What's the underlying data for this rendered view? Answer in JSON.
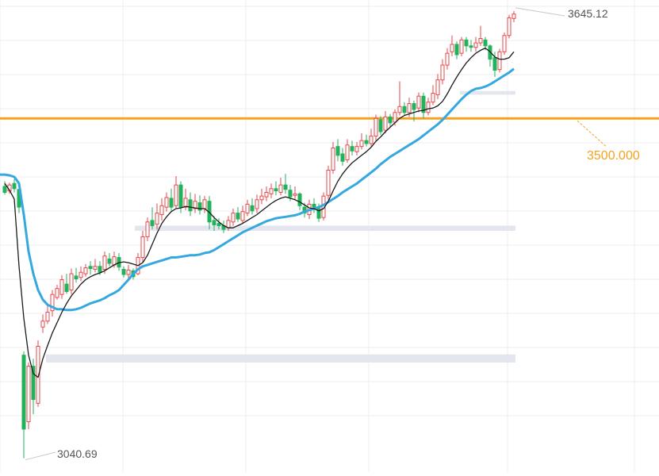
{
  "chart_data": {
    "type": "candlestick",
    "title": "",
    "xlabel": "",
    "ylabel": "",
    "ylim": [
      3022,
      3660
    ],
    "grid": true,
    "colors": {
      "up": "#e8474b",
      "down": "#21b35c",
      "ma_fast": "#1a1a1a",
      "ma_slow": "#35a8df",
      "level_line": "#f5a220",
      "zone": "#e3e6ee",
      "grid": "#eeeeee",
      "label_text": "#555555"
    },
    "labels": {
      "high_label": "3645.12",
      "low_label": "3040.69",
      "level_label": "3500.000"
    },
    "high_value": 3645.12,
    "low_value": 3040.69,
    "horizontal_line": {
      "value": 3500.0,
      "label": "3500.000"
    },
    "zones": [
      {
        "from": 3532,
        "to": 3537
      },
      {
        "from": 3348,
        "to": 3355
      },
      {
        "from": 3170,
        "to": 3181
      }
    ],
    "candles": [
      [
        3408,
        3400,
        3415,
        3397
      ],
      [
        3402,
        3410,
        3413,
        3398
      ],
      [
        3412,
        3405,
        3418,
        3400
      ],
      [
        3404,
        3380,
        3407,
        3372
      ],
      [
        3180,
        3080,
        3185,
        3040.69
      ],
      [
        3090,
        3165,
        3170,
        3080
      ],
      [
        3165,
        3120,
        3175,
        3100
      ],
      [
        3115,
        3192,
        3200,
        3110
      ],
      [
        3218,
        3226,
        3235,
        3210
      ],
      [
        3226,
        3238,
        3248,
        3222
      ],
      [
        3240,
        3262,
        3268,
        3232
      ],
      [
        3258,
        3270,
        3275,
        3255
      ],
      [
        3262,
        3282,
        3288,
        3256
      ],
      [
        3276,
        3266,
        3290,
        3263
      ],
      [
        3268,
        3290,
        3297,
        3262
      ],
      [
        3287,
        3283,
        3298,
        3278
      ],
      [
        3285,
        3292,
        3300,
        3280
      ],
      [
        3290,
        3298,
        3303,
        3286
      ],
      [
        3300,
        3297,
        3307,
        3289
      ],
      [
        3296,
        3300,
        3310,
        3292
      ],
      [
        3300,
        3292,
        3307,
        3288
      ],
      [
        3296,
        3314,
        3320,
        3290
      ],
      [
        3310,
        3304,
        3318,
        3300
      ],
      [
        3302,
        3313,
        3320,
        3298
      ],
      [
        3312,
        3299,
        3318,
        3294
      ],
      [
        3296,
        3289,
        3300,
        3285
      ],
      [
        3289,
        3295,
        3302,
        3283
      ],
      [
        3294,
        3286,
        3297,
        3282
      ],
      [
        3290,
        3312,
        3318,
        3288
      ],
      [
        3312,
        3340,
        3348,
        3305
      ],
      [
        3340,
        3360,
        3366,
        3334
      ],
      [
        3362,
        3355,
        3380,
        3350
      ],
      [
        3357,
        3372,
        3385,
        3350
      ],
      [
        3370,
        3382,
        3392,
        3362
      ],
      [
        3380,
        3393,
        3400,
        3374
      ],
      [
        3392,
        3380,
        3405,
        3375
      ],
      [
        3382,
        3410,
        3422,
        3378
      ],
      [
        3410,
        3380,
        3415,
        3372
      ],
      [
        3380,
        3392,
        3405,
        3376
      ],
      [
        3390,
        3375,
        3400,
        3368
      ],
      [
        3378,
        3388,
        3398,
        3372
      ],
      [
        3386,
        3376,
        3396,
        3370
      ],
      [
        3378,
        3390,
        3395,
        3372
      ],
      [
        3388,
        3360,
        3395,
        3350
      ],
      [
        3362,
        3356,
        3368,
        3348
      ],
      [
        3358,
        3355,
        3365,
        3350
      ],
      [
        3355,
        3350,
        3362,
        3345
      ],
      [
        3352,
        3362,
        3368,
        3348
      ],
      [
        3360,
        3372,
        3378,
        3355
      ],
      [
        3372,
        3364,
        3380,
        3360
      ],
      [
        3362,
        3374,
        3382,
        3358
      ],
      [
        3372,
        3384,
        3390,
        3368
      ],
      [
        3382,
        3375,
        3392,
        3370
      ],
      [
        3378,
        3390,
        3397,
        3372
      ],
      [
        3390,
        3395,
        3405,
        3384
      ],
      [
        3394,
        3400,
        3408,
        3388
      ],
      [
        3398,
        3405,
        3412,
        3392
      ],
      [
        3405,
        3402,
        3415,
        3396
      ],
      [
        3400,
        3410,
        3420,
        3396
      ],
      [
        3410,
        3404,
        3425,
        3398
      ],
      [
        3403,
        3394,
        3410,
        3388
      ],
      [
        3396,
        3398,
        3408,
        3390
      ],
      [
        3398,
        3382,
        3400,
        3376
      ],
      [
        3380,
        3372,
        3386,
        3366
      ],
      [
        3370,
        3384,
        3390,
        3364
      ],
      [
        3384,
        3380,
        3392,
        3372
      ],
      [
        3378,
        3365,
        3385,
        3360
      ],
      [
        3366,
        3395,
        3400,
        3362
      ],
      [
        3396,
        3430,
        3436,
        3390
      ],
      [
        3430,
        3460,
        3468,
        3425
      ],
      [
        3462,
        3450,
        3472,
        3442
      ],
      [
        3452,
        3442,
        3460,
        3436
      ],
      [
        3444,
        3464,
        3472,
        3440
      ],
      [
        3462,
        3456,
        3470,
        3450
      ],
      [
        3455,
        3462,
        3468,
        3450
      ],
      [
        3462,
        3470,
        3480,
        3458
      ],
      [
        3470,
        3466,
        3478,
        3462
      ],
      [
        3466,
        3476,
        3486,
        3462
      ],
      [
        3476,
        3500,
        3505,
        3470
      ],
      [
        3498,
        3482,
        3503,
        3478
      ],
      [
        3484,
        3502,
        3510,
        3480
      ],
      [
        3502,
        3494,
        3506,
        3488
      ],
      [
        3495,
        3508,
        3512,
        3490
      ],
      [
        3508,
        3516,
        3550,
        3504
      ],
      [
        3516,
        3508,
        3522,
        3504
      ],
      [
        3508,
        3520,
        3528,
        3502
      ],
      [
        3520,
        3512,
        3524,
        3496
      ],
      [
        3514,
        3530,
        3535,
        3508
      ],
      [
        3530,
        3508,
        3535,
        3500
      ],
      [
        3508,
        3522,
        3528,
        3504
      ],
      [
        3522,
        3534,
        3545,
        3518
      ],
      [
        3532,
        3552,
        3560,
        3526
      ],
      [
        3552,
        3572,
        3580,
        3546
      ],
      [
        3572,
        3588,
        3595,
        3566
      ],
      [
        3590,
        3600,
        3612,
        3584
      ],
      [
        3600,
        3586,
        3604,
        3580
      ],
      [
        3588,
        3606,
        3610,
        3584
      ],
      [
        3606,
        3598,
        3610,
        3590
      ],
      [
        3598,
        3596,
        3606,
        3590
      ],
      [
        3596,
        3602,
        3610,
        3590
      ],
      [
        3602,
        3608,
        3625,
        3598
      ],
      [
        3606,
        3598,
        3610,
        3592
      ],
      [
        3598,
        3580,
        3600,
        3570
      ],
      [
        3582,
        3565,
        3590,
        3556
      ],
      [
        3566,
        3590,
        3594,
        3562
      ],
      [
        3590,
        3612,
        3616,
        3586
      ],
      [
        3612,
        3636,
        3640,
        3608
      ],
      [
        3635,
        3641,
        3645.12,
        3630
      ]
    ],
    "ma_fast": [
      3412,
      3403,
      3391,
      3300,
      3230,
      3180,
      3155,
      3150,
      3175,
      3193,
      3210,
      3224,
      3238,
      3250,
      3260,
      3268,
      3276,
      3282,
      3286,
      3289,
      3291,
      3294,
      3298,
      3302,
      3305,
      3306,
      3305,
      3303,
      3301,
      3305,
      3315,
      3330,
      3345,
      3358,
      3367,
      3374,
      3378,
      3379,
      3381,
      3380,
      3379,
      3378,
      3378,
      3373,
      3366,
      3360,
      3355,
      3352,
      3352,
      3355,
      3358,
      3362,
      3366,
      3370,
      3375,
      3380,
      3385,
      3389,
      3392,
      3394,
      3392,
      3390,
      3387,
      3383,
      3379,
      3378,
      3375,
      3378,
      3388,
      3402,
      3415,
      3425,
      3433,
      3440,
      3445,
      3450,
      3455,
      3461,
      3469,
      3475,
      3482,
      3488,
      3494,
      3500,
      3504,
      3506,
      3508,
      3510,
      3511,
      3513,
      3514,
      3517,
      3523,
      3533,
      3545,
      3556,
      3566,
      3575,
      3582,
      3588,
      3592,
      3595,
      3590,
      3583,
      3580,
      3580,
      3582,
      3590
    ],
    "ma_slow": [
      3424,
      3423,
      3421,
      3412,
      3370,
      3320,
      3290,
      3268,
      3255,
      3248,
      3245,
      3242,
      3242,
      3241,
      3241,
      3242,
      3244,
      3247,
      3250,
      3252,
      3254,
      3257,
      3261,
      3264,
      3268,
      3275,
      3282,
      3290,
      3296,
      3300,
      3302,
      3304,
      3306,
      3308,
      3310,
      3312,
      3312,
      3313,
      3314,
      3315,
      3315,
      3316,
      3318,
      3319,
      3322,
      3326,
      3330,
      3334,
      3338,
      3342,
      3346,
      3349,
      3352,
      3355,
      3358,
      3361,
      3363,
      3365,
      3366,
      3367,
      3368,
      3369,
      3371,
      3374,
      3376,
      3378,
      3380,
      3383,
      3387,
      3391,
      3395,
      3400,
      3404,
      3408,
      3412,
      3417,
      3422,
      3427,
      3432,
      3438,
      3443,
      3448,
      3452,
      3456,
      3460,
      3464,
      3468,
      3472,
      3477,
      3482,
      3487,
      3492,
      3498,
      3505,
      3512,
      3519,
      3526,
      3532,
      3537,
      3540,
      3541,
      3543,
      3546,
      3550,
      3554,
      3558,
      3562,
      3567
    ]
  }
}
